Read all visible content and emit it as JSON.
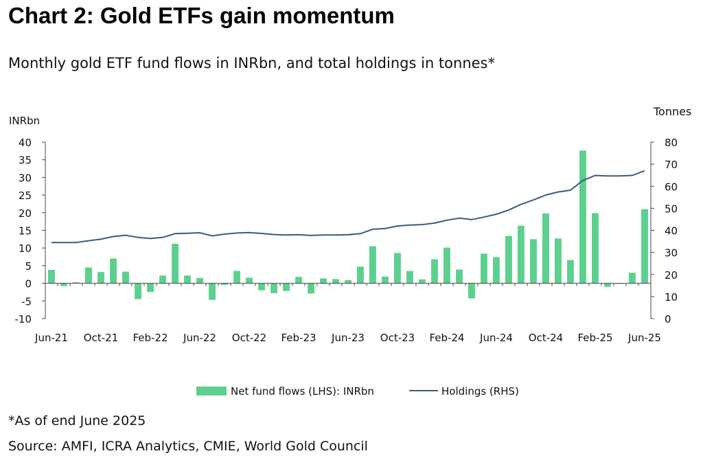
{
  "title": "Chart 2: Gold ETFs gain momentum",
  "subtitle": "Monthly gold ETF fund flows in INRbn, and total holdings in tonnes*",
  "footnote": "*As of end June 2025",
  "source": "Source: AMFI, ICRA Analytics, CMIE, World Gold Council",
  "colors": {
    "bars": "#5cd08e",
    "line": "#3e5a7a",
    "axis": "#444444",
    "text": "#111111"
  },
  "chart_data": {
    "type": "bar",
    "ylabel_left": "INRbn",
    "ylabel_right": "Tonnes",
    "ylim_left": [
      -10,
      40
    ],
    "ylim_right": [
      0,
      80
    ],
    "yticks_left": [
      "40",
      "35",
      "30",
      "25",
      "20",
      "15",
      "10",
      "5",
      "0",
      "-5",
      "-10"
    ],
    "yticks_right": [
      "80",
      "70",
      "60",
      "50",
      "40",
      "30",
      "20",
      "10",
      "0"
    ],
    "xtick_labels": [
      "Jun-21",
      "Oct-21",
      "Feb-22",
      "Jun-22",
      "Oct-22",
      "Feb-23",
      "Jun-23",
      "Oct-23",
      "Feb-24",
      "Jun-24",
      "Oct-24",
      "Feb-25",
      "Jun-25"
    ],
    "x": [
      "Jun-21",
      "Jul-21",
      "Aug-21",
      "Sep-21",
      "Oct-21",
      "Nov-21",
      "Dec-21",
      "Jan-22",
      "Feb-22",
      "Mar-22",
      "Apr-22",
      "May-22",
      "Jun-22",
      "Jul-22",
      "Aug-22",
      "Sep-22",
      "Oct-22",
      "Nov-22",
      "Dec-22",
      "Jan-23",
      "Feb-23",
      "Mar-23",
      "Apr-23",
      "May-23",
      "Jun-23",
      "Jul-23",
      "Aug-23",
      "Sep-23",
      "Oct-23",
      "Nov-23",
      "Dec-23",
      "Jan-24",
      "Feb-24",
      "Mar-24",
      "Apr-24",
      "May-24",
      "Jun-24",
      "Jul-24",
      "Aug-24",
      "Sep-24",
      "Oct-24",
      "Nov-24",
      "Dec-24",
      "Jan-25",
      "Feb-25",
      "Mar-25",
      "Apr-25",
      "May-25",
      "Jun-25"
    ],
    "grid": false,
    "legend_position": "bottom",
    "series": [
      {
        "name": "Net fund flows (LHS): INRbn",
        "type": "bar",
        "axis": "left",
        "values": [
          3.8,
          -0.8,
          0.3,
          4.5,
          3.2,
          7.0,
          3.3,
          -4.5,
          -2.5,
          2.2,
          11.2,
          2.2,
          1.5,
          -4.7,
          -0.5,
          3.5,
          1.6,
          -2.0,
          -2.8,
          -2.2,
          1.8,
          -2.9,
          1.4,
          1.2,
          0.9,
          4.7,
          10.5,
          1.9,
          8.6,
          3.5,
          1.1,
          6.8,
          10.1,
          3.9,
          -4.3,
          8.4,
          7.4,
          13.4,
          16.3,
          12.5,
          19.8,
          12.7,
          6.6,
          37.6,
          19.9,
          -1.0,
          -0.2,
          3.0,
          21.0
        ]
      },
      {
        "name": "Holdings (RHS)",
        "type": "line",
        "axis": "right",
        "values": [
          34.5,
          34.5,
          34.5,
          35.3,
          36.0,
          37.2,
          37.8,
          36.8,
          36.3,
          36.8,
          38.5,
          38.7,
          38.9,
          37.5,
          38.3,
          38.8,
          39.0,
          38.6,
          38.1,
          37.9,
          38.0,
          37.7,
          37.9,
          37.9,
          38.0,
          38.5,
          40.5,
          40.8,
          42.0,
          42.4,
          42.6,
          43.3,
          44.6,
          45.5,
          44.9,
          46.0,
          47.3,
          49.2,
          51.8,
          53.8,
          56.0,
          57.4,
          58.2,
          62.6,
          64.9,
          64.7,
          64.7,
          64.9,
          67.0
        ]
      }
    ]
  }
}
